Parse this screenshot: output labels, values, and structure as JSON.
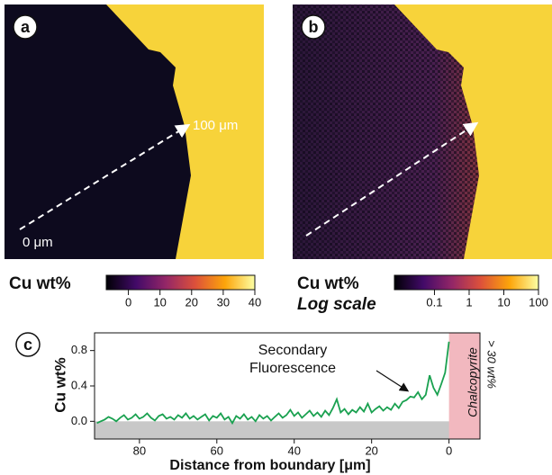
{
  "chart_data": [
    {
      "type": "colorbar",
      "panel_label": "a",
      "title": "Cu wt%",
      "annotations": [
        "100 μm",
        "0 μm"
      ],
      "xlim": [
        -7,
        40
      ],
      "xticks": [
        0,
        10,
        20,
        30,
        40
      ]
    },
    {
      "type": "colorbar",
      "panel_label": "b",
      "title": "Cu wt%",
      "subtitle": "Log scale",
      "log_scale": true,
      "xlim": [
        0.007,
        100
      ],
      "xticks": [
        0.1,
        1,
        10,
        100
      ]
    },
    {
      "type": "line",
      "panel_label": "c",
      "x_label": "Distance from boundary [μm]",
      "y_label": "Cu wt%",
      "annotations": [
        "Secondary",
        "Fluorescence",
        "Chalcopyrite",
        "> 30 wt%"
      ],
      "color": "#1aa150",
      "xlim": [
        91.6,
        -8
      ],
      "xticks": [
        80,
        60,
        40,
        20,
        0
      ],
      "ylim": [
        -0.2,
        1.0
      ],
      "yticks": [
        {
          "value": 0,
          "label": "0.0"
        },
        0.4,
        0.8
      ],
      "x": [
        91,
        90,
        89,
        88,
        87,
        86,
        85,
        84,
        83,
        82,
        81,
        80,
        79,
        78,
        77,
        76,
        75,
        74,
        73,
        72,
        71,
        70,
        69,
        68,
        67,
        66,
        65,
        64,
        63,
        62,
        61,
        60,
        59,
        58,
        57,
        56,
        55,
        54,
        53,
        52,
        51,
        50,
        49,
        48,
        47,
        46,
        45,
        44,
        43,
        42,
        41,
        40,
        39,
        38,
        37,
        36,
        35,
        34,
        33,
        32,
        31,
        30,
        29,
        28,
        27,
        26,
        25,
        24,
        23,
        22,
        21,
        20,
        19,
        18,
        17,
        16,
        15,
        14,
        13,
        12,
        11,
        10,
        9,
        8,
        7,
        6,
        5,
        4,
        3,
        2,
        1,
        0
      ],
      "values": [
        -0.02,
        0.0,
        0.02,
        0.05,
        0.03,
        0.0,
        0.04,
        0.07,
        0.02,
        0.04,
        0.08,
        0.03,
        0.05,
        0.09,
        0.04,
        0.01,
        0.06,
        0.08,
        0.03,
        0.05,
        0.02,
        0.07,
        0.04,
        0.09,
        0.03,
        0.06,
        0.02,
        0.05,
        0.08,
        0.01,
        0.06,
        0.04,
        0.09,
        0.02,
        0.05,
        -0.02,
        0.06,
        0.03,
        0.08,
        0.02,
        0.05,
        0.0,
        0.07,
        0.03,
        0.06,
        0.01,
        0.05,
        0.09,
        0.04,
        0.07,
        0.13,
        0.06,
        0.1,
        0.04,
        0.08,
        0.12,
        0.06,
        0.1,
        0.05,
        0.12,
        0.07,
        0.15,
        0.25,
        0.1,
        0.14,
        0.08,
        0.13,
        0.1,
        0.16,
        0.11,
        0.2,
        0.1,
        0.14,
        0.17,
        0.12,
        0.16,
        0.13,
        0.2,
        0.15,
        0.22,
        0.24,
        0.28,
        0.27,
        0.33,
        0.25,
        0.3,
        0.52,
        0.38,
        0.3,
        0.42,
        0.55,
        0.9
      ]
    }
  ]
}
